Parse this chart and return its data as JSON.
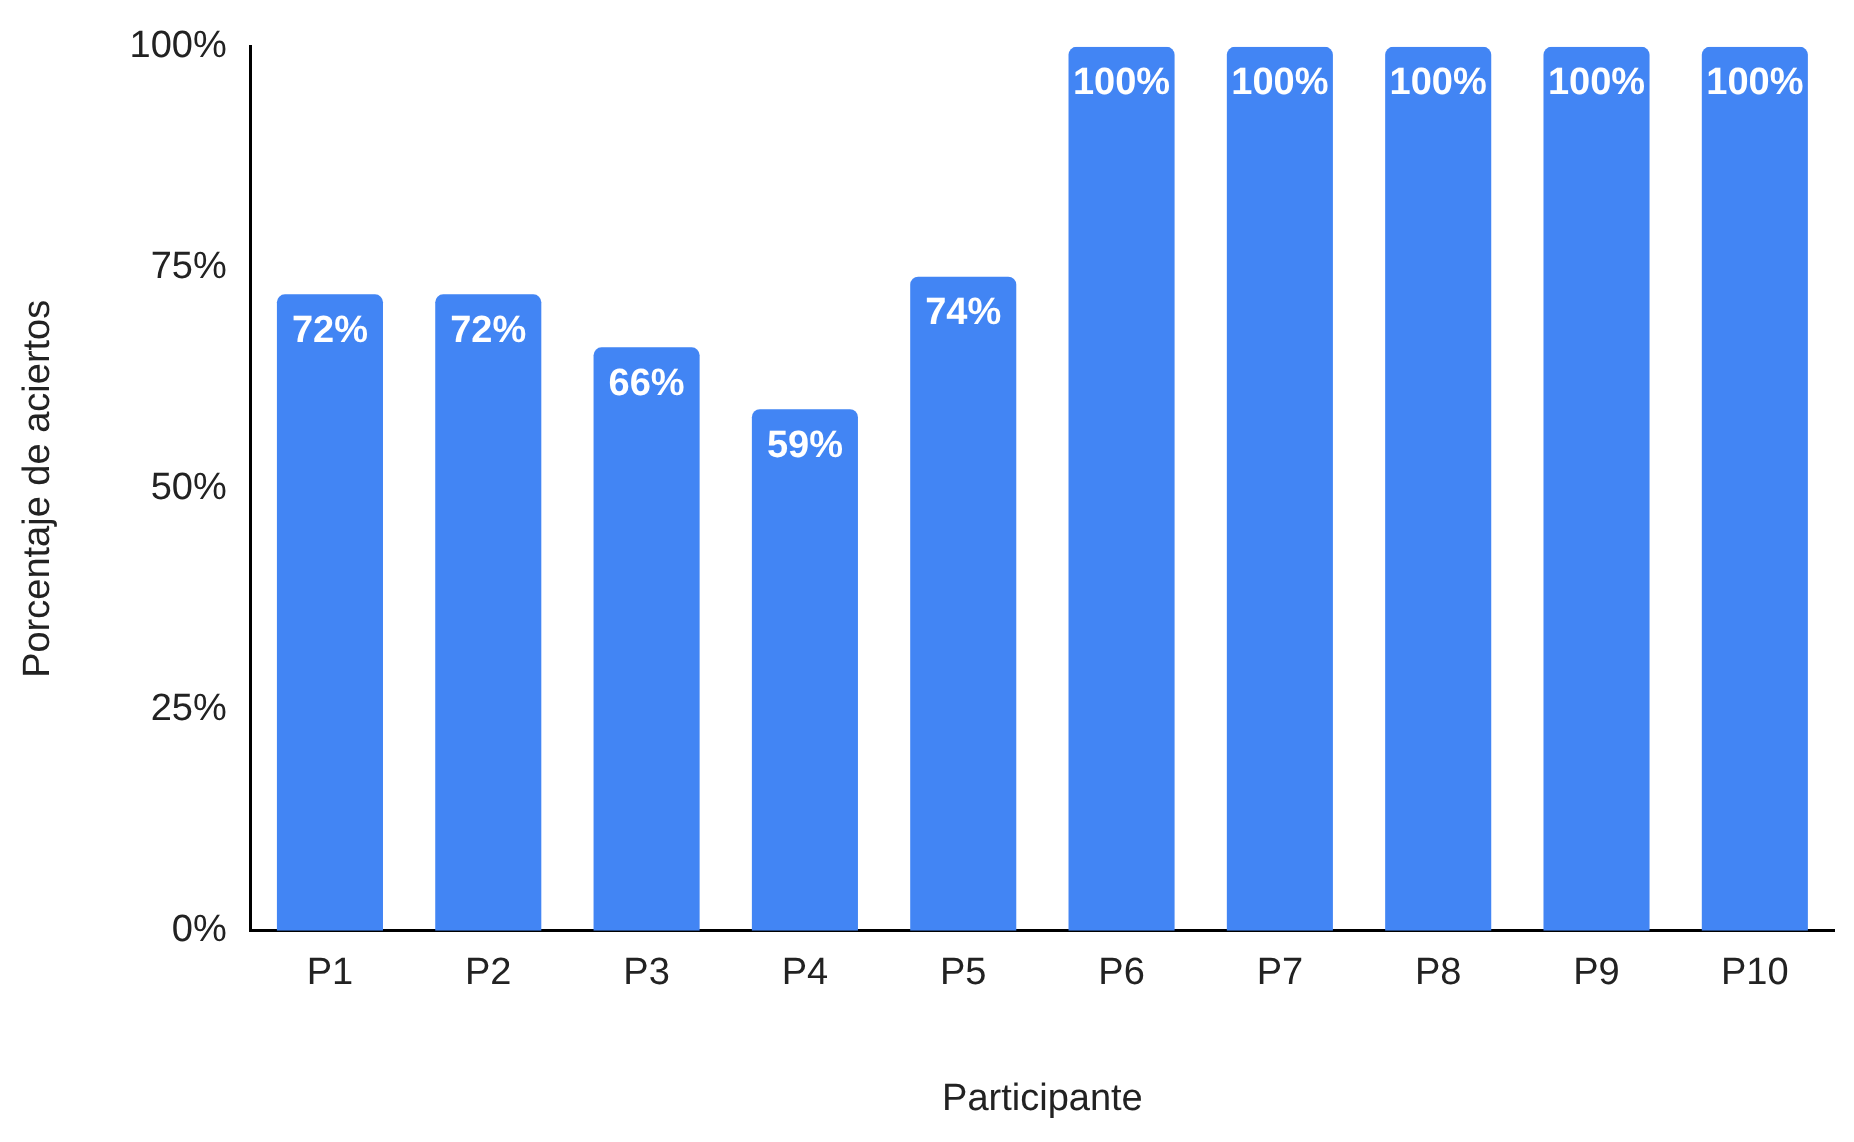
{
  "chart_data": {
    "type": "bar",
    "xlabel": "Participante",
    "ylabel": "Porcentaje de aciertos",
    "categories": [
      "P1",
      "P2",
      "P3",
      "P4",
      "P5",
      "P6",
      "P7",
      "P8",
      "P9",
      "P10"
    ],
    "values": [
      72,
      72,
      66,
      59,
      74,
      100,
      100,
      100,
      100,
      100
    ],
    "value_labels": [
      "72%",
      "72%",
      "66%",
      "59%",
      "74%",
      "100%",
      "100%",
      "100%",
      "100%",
      "100%"
    ],
    "color": "#4285f4",
    "ylim": [
      0,
      100
    ],
    "yticks": [
      {
        "value": 0,
        "label": "0%"
      },
      {
        "value": 25,
        "label": "25%"
      },
      {
        "value": 50,
        "label": "50%"
      },
      {
        "value": 75,
        "label": "75%"
      },
      {
        "value": 100,
        "label": "100%"
      }
    ],
    "grid": false,
    "legend": false
  }
}
